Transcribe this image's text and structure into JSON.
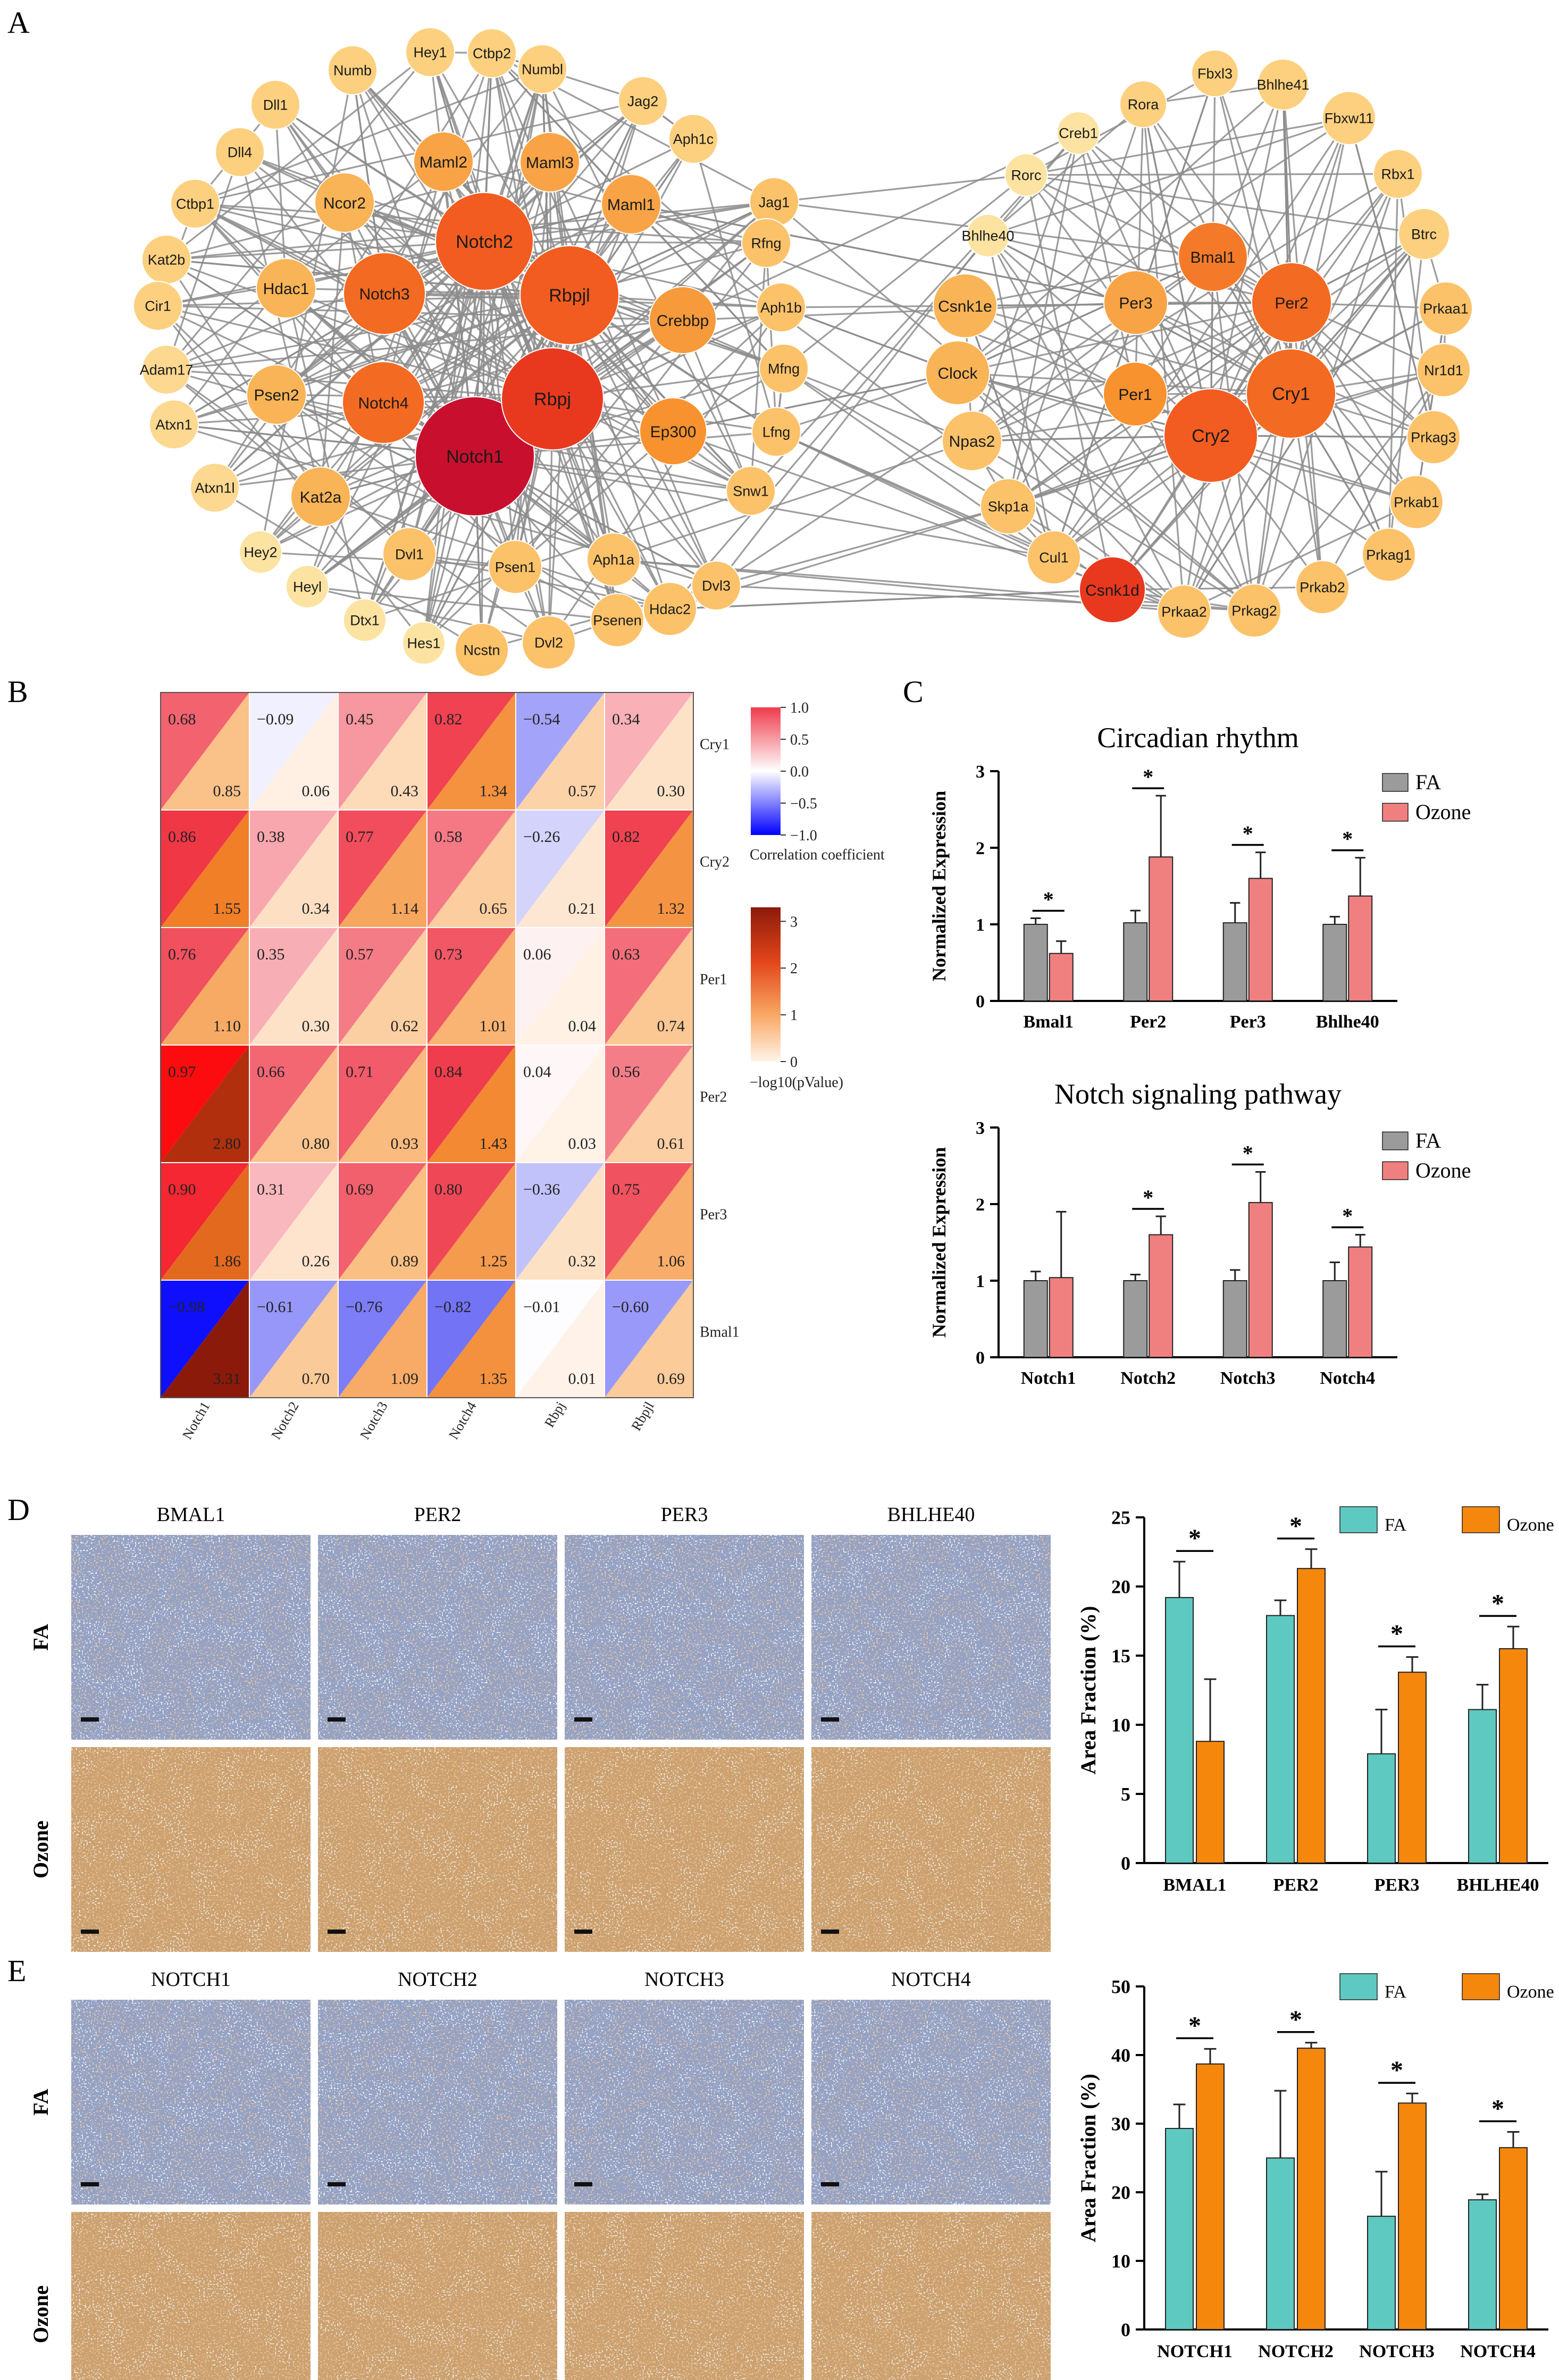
{
  "panel_labels": [
    "A",
    "B",
    "C",
    "D",
    "E"
  ],
  "network": {
    "nodes": [
      {
        "label": "Notch1",
        "c": "#c8102e"
      },
      {
        "label": "Rbpj",
        "c": "#e8391f"
      },
      {
        "label": "Notch2",
        "c": "#f25c20"
      },
      {
        "label": "Rbpjl",
        "c": "#f25c20"
      },
      {
        "label": "Notch3",
        "c": "#f36a22"
      },
      {
        "label": "Notch4",
        "c": "#f36a22"
      },
      {
        "label": "Crebbp",
        "c": "#f79a3b"
      },
      {
        "label": "Ep300",
        "c": "#f7922f"
      },
      {
        "label": "Maml1",
        "c": "#f8a446"
      },
      {
        "label": "Maml2",
        "c": "#f8a446"
      },
      {
        "label": "Maml3",
        "c": "#f8a446"
      },
      {
        "label": "Ncor2",
        "c": "#f9b457"
      },
      {
        "label": "Hdac1",
        "c": "#f9b457"
      },
      {
        "label": "Psen2",
        "c": "#f9b457"
      },
      {
        "label": "Kat2a",
        "c": "#f9b457"
      },
      {
        "label": "Jag1",
        "c": "#fbc26a"
      },
      {
        "label": "Aph1b",
        "c": "#fbc26a"
      },
      {
        "label": "Mfng",
        "c": "#fbc26a"
      },
      {
        "label": "Lfng",
        "c": "#fbc26a"
      },
      {
        "label": "Rfng",
        "c": "#fbc26a"
      },
      {
        "label": "Snw1",
        "c": "#fbc26a"
      },
      {
        "label": "Aph1a",
        "c": "#fbc26a"
      },
      {
        "label": "Psen1",
        "c": "#fbc26a"
      },
      {
        "label": "Dvl1",
        "c": "#fbc26a"
      },
      {
        "label": "Dvl3",
        "c": "#fbc26a"
      },
      {
        "label": "Hdac2",
        "c": "#fbc26a"
      },
      {
        "label": "Psenen",
        "c": "#fbc26a"
      },
      {
        "label": "Dvl2",
        "c": "#fbc26a"
      },
      {
        "label": "Ncstn",
        "c": "#fbc26a"
      },
      {
        "label": "Aph1c",
        "c": "#fcd07e"
      },
      {
        "label": "Jag2",
        "c": "#fcd07e"
      },
      {
        "label": "Numbl",
        "c": "#fcd07e"
      },
      {
        "label": "Ctbp2",
        "c": "#fcd07e"
      },
      {
        "label": "Hey1",
        "c": "#fcd07e"
      },
      {
        "label": "Numb",
        "c": "#fcd07e"
      },
      {
        "label": "Dll1",
        "c": "#fcd07e"
      },
      {
        "label": "Dll4",
        "c": "#fcd07e"
      },
      {
        "label": "Ctbp1",
        "c": "#fcd07e"
      },
      {
        "label": "Kat2b",
        "c": "#fcd07e"
      },
      {
        "label": "Cir1",
        "c": "#fcd07e"
      },
      {
        "label": "Adam17",
        "c": "#fcd890"
      },
      {
        "label": "Atxn1",
        "c": "#fcd890"
      },
      {
        "label": "Atxn1l",
        "c": "#fcd890"
      },
      {
        "label": "Hey2",
        "c": "#fde3a2"
      },
      {
        "label": "Heyl",
        "c": "#fde3a2"
      },
      {
        "label": "Dtx1",
        "c": "#fde3a2"
      },
      {
        "label": "Hes1",
        "c": "#fde3a2"
      },
      {
        "label": "Cry2",
        "c": "#f25c20"
      },
      {
        "label": "Cry1",
        "c": "#f36a22"
      },
      {
        "label": "Per2",
        "c": "#f36a22"
      },
      {
        "label": "Bmal1",
        "c": "#f47a2a"
      },
      {
        "label": "Per1",
        "c": "#f7922f"
      },
      {
        "label": "Per3",
        "c": "#f8a446"
      },
      {
        "label": "Csnk1e",
        "c": "#f9b457"
      },
      {
        "label": "Clock",
        "c": "#f9b457"
      },
      {
        "label": "Csnk1d",
        "c": "#e8391f"
      },
      {
        "label": "Npas2",
        "c": "#fbc26a"
      },
      {
        "label": "Skp1a",
        "c": "#fbc26a"
      },
      {
        "label": "Cul1",
        "c": "#fbc26a"
      },
      {
        "label": "Prkaa2",
        "c": "#fbc26a"
      },
      {
        "label": "Prkag2",
        "c": "#fbc26a"
      },
      {
        "label": "Prkab2",
        "c": "#fbc26a"
      },
      {
        "label": "Prkag1",
        "c": "#fbc26a"
      },
      {
        "label": "Prkab1",
        "c": "#fbc26a"
      },
      {
        "label": "Prkag3",
        "c": "#fbc26a"
      },
      {
        "label": "Nr1d1",
        "c": "#fbc26a"
      },
      {
        "label": "Prkaa1",
        "c": "#fbc26a"
      },
      {
        "label": "Btrc",
        "c": "#fcd07e"
      },
      {
        "label": "Rbx1",
        "c": "#fcd07e"
      },
      {
        "label": "Fbxw11",
        "c": "#fcd07e"
      },
      {
        "label": "Bhlhe41",
        "c": "#fcd07e"
      },
      {
        "label": "Fbxl3",
        "c": "#fcd07e"
      },
      {
        "label": "Rora",
        "c": "#fcd07e"
      },
      {
        "label": "Creb1",
        "c": "#fde3a2"
      },
      {
        "label": "Rorc",
        "c": "#fde3a2"
      },
      {
        "label": "Bhlhe40",
        "c": "#fde3a2"
      }
    ]
  },
  "heatmap": {
    "columns": [
      "Notch1",
      "Notch2",
      "Notch3",
      "Notch4",
      "Rbpj",
      "Rbpjl"
    ],
    "rows": [
      "Cry1",
      "Cry2",
      "Per1",
      "Per2",
      "Per3",
      "Bmal1"
    ],
    "r": [
      [
        0.68,
        -0.09,
        0.45,
        0.82,
        -0.54,
        0.34
      ],
      [
        0.86,
        0.38,
        0.77,
        0.58,
        -0.26,
        0.82
      ],
      [
        0.76,
        0.35,
        0.57,
        0.73,
        0.06,
        0.63
      ],
      [
        0.97,
        0.66,
        0.71,
        0.84,
        0.04,
        0.56
      ],
      [
        0.9,
        0.31,
        0.69,
        0.8,
        -0.36,
        0.75
      ],
      [
        -0.98,
        -0.61,
        -0.76,
        -0.82,
        -0.01,
        -0.6
      ]
    ],
    "r_text": [
      [
        "0.68",
        "−0.09",
        "0.45",
        "0.82",
        "−0.54",
        "0.34"
      ],
      [
        "0.86",
        "0.38",
        "0.77",
        "0.58",
        "−0.26",
        "0.82"
      ],
      [
        "0.76",
        "0.35",
        "0.57",
        "0.73",
        "0.06",
        "0.63"
      ],
      [
        "0.97",
        "0.66",
        "0.71",
        "0.84",
        "0.04",
        "0.56"
      ],
      [
        "0.90",
        "0.31",
        "0.69",
        "0.80",
        "−0.36",
        "0.75"
      ],
      [
        "−0.98",
        "−0.61",
        "−0.76",
        "−0.82",
        "−0.01",
        "−0.60"
      ]
    ],
    "p": [
      [
        0.85,
        0.06,
        0.43,
        1.34,
        0.57,
        0.3
      ],
      [
        1.55,
        0.34,
        1.14,
        0.65,
        0.21,
        1.32
      ],
      [
        1.1,
        0.3,
        0.62,
        1.01,
        0.04,
        0.74
      ],
      [
        2.8,
        0.8,
        0.93,
        1.43,
        0.03,
        0.61
      ],
      [
        1.86,
        0.26,
        0.89,
        1.25,
        0.32,
        1.06
      ],
      [
        3.31,
        0.7,
        1.09,
        1.35,
        0.01,
        0.69
      ]
    ],
    "p_text": [
      [
        "0.85",
        "0.06",
        "0.43",
        "1.34",
        "0.57",
        "0.30"
      ],
      [
        "1.55",
        "0.34",
        "1.14",
        "0.65",
        "0.21",
        "1.32"
      ],
      [
        "1.10",
        "0.30",
        "0.62",
        "1.01",
        "0.04",
        "0.74"
      ],
      [
        "2.80",
        "0.80",
        "0.93",
        "1.43",
        "0.03",
        "0.61"
      ],
      [
        "1.86",
        "0.26",
        "0.89",
        "1.25",
        "0.32",
        "1.06"
      ],
      [
        "3.31",
        "0.70",
        "1.09",
        "1.35",
        "0.01",
        "0.69"
      ]
    ],
    "legend_corr": {
      "ticks": [
        "1.0",
        "0.5",
        "0.0",
        "−0.5",
        "−1.0"
      ],
      "label": "Correlation coefficient"
    },
    "legend_p": {
      "ticks": [
        "3",
        "2",
        "1",
        "0"
      ],
      "label": "−log10(pValue)"
    }
  },
  "chart_data": [
    {
      "id": "C1",
      "type": "bar",
      "title": "Circadian rhythm",
      "ylabel": "Normalized Expression",
      "xlabel": "",
      "categories": [
        "Bmal1",
        "Per2",
        "Per3",
        "Bhlhe40"
      ],
      "ylim": [
        0,
        3
      ],
      "yticks": [
        "0",
        "1",
        "2",
        "3"
      ],
      "series": [
        {
          "name": "FA",
          "values": [
            1.0,
            1.02,
            1.02,
            1.0
          ],
          "err": [
            0.08,
            0.16,
            0.26,
            0.1
          ]
        },
        {
          "name": "Ozone",
          "values": [
            0.62,
            1.88,
            1.6,
            1.37
          ],
          "err": [
            0.16,
            0.8,
            0.34,
            0.5
          ]
        }
      ],
      "sig": [
        "*",
        "*",
        "*",
        "*"
      ],
      "legend": "top-right",
      "colors": [
        "#9b9b9b",
        "#f08080"
      ]
    },
    {
      "id": "C2",
      "type": "bar",
      "title": "Notch signaling pathway",
      "ylabel": "Normalized Expression",
      "xlabel": "",
      "categories": [
        "Notch1",
        "Notch2",
        "Notch3",
        "Notch4"
      ],
      "ylim": [
        0,
        3
      ],
      "yticks": [
        "0",
        "1",
        "2",
        "3"
      ],
      "series": [
        {
          "name": "FA",
          "values": [
            1.0,
            1.0,
            1.0,
            1.0
          ],
          "err": [
            0.12,
            0.08,
            0.14,
            0.24
          ]
        },
        {
          "name": "Ozone",
          "values": [
            1.04,
            1.6,
            2.02,
            1.44
          ],
          "err": [
            0.86,
            0.24,
            0.4,
            0.16
          ]
        }
      ],
      "sig": [
        "",
        "*",
        "*",
        "*"
      ],
      "legend": "top-right",
      "colors": [
        "#9b9b9b",
        "#f08080"
      ]
    },
    {
      "id": "D",
      "type": "bar",
      "title": "",
      "ylabel": "Area Fraction (%)",
      "xlabel": "",
      "categories": [
        "BMAL1",
        "PER2",
        "PER3",
        "BHLHE40"
      ],
      "ylim": [
        0,
        25
      ],
      "yticks": [
        "0",
        "5",
        "10",
        "15",
        "20",
        "25"
      ],
      "series": [
        {
          "name": "FA",
          "values": [
            19.2,
            17.9,
            7.9,
            11.1
          ],
          "err": [
            2.6,
            1.1,
            3.2,
            1.8
          ]
        },
        {
          "name": "Ozone",
          "values": [
            8.8,
            21.3,
            13.8,
            15.5
          ],
          "err": [
            4.5,
            1.4,
            1.1,
            1.6
          ]
        }
      ],
      "sig": [
        "*",
        "*",
        "*",
        "*"
      ],
      "legend": "top-right",
      "colors": [
        "#5ec9c0",
        "#f5870c"
      ]
    },
    {
      "id": "E",
      "type": "bar",
      "title": "",
      "ylabel": "Area Fraction (%)",
      "xlabel": "",
      "categories": [
        "NOTCH1",
        "NOTCH2",
        "NOTCH3",
        "NOTCH4"
      ],
      "ylim": [
        0,
        50
      ],
      "yticks": [
        "0",
        "10",
        "20",
        "30",
        "40",
        "50"
      ],
      "series": [
        {
          "name": "FA",
          "values": [
            29.3,
            25.0,
            16.5,
            18.9
          ],
          "err": [
            3.5,
            9.8,
            6.5,
            0.8
          ]
        },
        {
          "name": "Ozone",
          "values": [
            38.7,
            41.0,
            33.0,
            26.5
          ],
          "err": [
            2.2,
            0.8,
            1.4,
            2.3
          ]
        }
      ],
      "sig": [
        "*",
        "*",
        "*",
        "*"
      ],
      "legend": "top-right",
      "colors": [
        "#5ec9c0",
        "#f5870c"
      ]
    }
  ],
  "micrographs": {
    "D": {
      "columns": [
        "BMAL1",
        "PER2",
        "PER3",
        "BHLHE40"
      ],
      "rows": [
        "FA",
        "Ozone"
      ]
    },
    "E": {
      "columns": [
        "NOTCH1",
        "NOTCH2",
        "NOTCH3",
        "NOTCH4"
      ],
      "rows": [
        "FA",
        "Ozone"
      ]
    }
  }
}
